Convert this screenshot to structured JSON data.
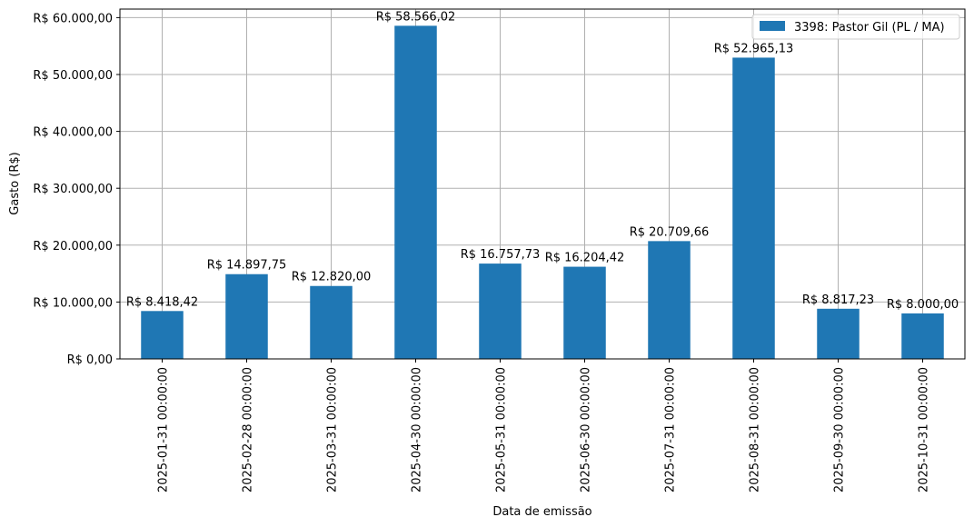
{
  "chart_data": {
    "type": "bar",
    "categories": [
      "2025-01-31 00:00:00",
      "2025-02-28 00:00:00",
      "2025-03-31 00:00:00",
      "2025-04-30 00:00:00",
      "2025-05-31 00:00:00",
      "2025-06-30 00:00:00",
      "2025-07-31 00:00:00",
      "2025-08-31 00:00:00",
      "2025-09-30 00:00:00",
      "2025-10-31 00:00:00"
    ],
    "series": [
      {
        "name": "3398: Pastor Gil (PL / MA)",
        "color": "#1f77b4",
        "values": [
          8418.42,
          14897.75,
          12820.0,
          58566.02,
          16757.73,
          16204.42,
          20709.66,
          52965.13,
          8817.23,
          8000.0
        ],
        "labels": [
          "R$ 8.418,42",
          "R$ 14.897,75",
          "R$ 12.820,00",
          "R$ 58.566,02",
          "R$ 16.757,73",
          "R$ 16.204,42",
          "R$ 20.709,66",
          "R$ 52.965,13",
          "R$ 8.817,23",
          "R$ 8.000,00"
        ]
      }
    ],
    "title": "",
    "xlabel": "Data de emissão",
    "ylabel": "Gasto (R$)",
    "ylim": [
      0,
      61500
    ],
    "yticks": [
      0,
      10000,
      20000,
      30000,
      40000,
      50000,
      60000
    ],
    "ytick_labels": [
      "R$ 0,00",
      "R$ 10.000,00",
      "R$ 20.000,00",
      "R$ 30.000,00",
      "R$ 40.000,00",
      "R$ 50.000,00",
      "R$ 60.000,00"
    ],
    "grid": true,
    "legend_position": "top-right"
  }
}
